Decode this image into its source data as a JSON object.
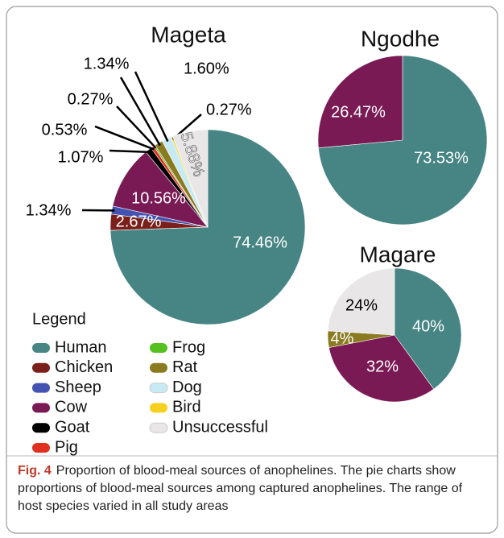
{
  "chart_data": [
    {
      "type": "pie",
      "title": "Mageta",
      "values": [
        74.46,
        2.67,
        1.34,
        10.56,
        1.07,
        0.53,
        0.27,
        1.34,
        1.6,
        0.27,
        5.88
      ],
      "value_labels": [
        "74.46%",
        "2.67%",
        "1.34%",
        "10.56%",
        "1.07%",
        "0.53%",
        "0.27%",
        "1.34%",
        "1.60%",
        "0.27%",
        "5.88%"
      ],
      "colors": [
        "#468583",
        "#7a1f1a",
        "#4453b0",
        "#7a1a55",
        "#000000",
        "#e03020",
        "#55c020",
        "#8a7a20",
        "#c8eaf4",
        "#f5d020",
        "#e8e6e6"
      ]
    },
    {
      "type": "pie",
      "title": "Ngodhe",
      "values": [
        73.53,
        26.47
      ],
      "value_labels": [
        "73.53%",
        "26.47%"
      ],
      "colors": [
        "#468583",
        "#7a1a55"
      ]
    },
    {
      "type": "pie",
      "title": "Magare",
      "values": [
        40,
        32,
        4,
        24
      ],
      "value_labels": [
        "40%",
        "32%",
        "4%",
        "24%"
      ],
      "colors": [
        "#468583",
        "#7a1a55",
        "#8a7a20",
        "#e8e6e6"
      ]
    }
  ],
  "legend": {
    "title": "Legend",
    "items": [
      {
        "name": "Human",
        "color": "#468583"
      },
      {
        "name": "Chicken",
        "color": "#7a1f1a"
      },
      {
        "name": "Sheep",
        "color": "#4453b0"
      },
      {
        "name": "Cow",
        "color": "#7a1a55"
      },
      {
        "name": "Goat",
        "color": "#000000"
      },
      {
        "name": "Pig",
        "color": "#e03020"
      },
      {
        "name": "Frog",
        "color": "#55c020"
      },
      {
        "name": "Rat",
        "color": "#8a7a20"
      },
      {
        "name": "Dog",
        "color": "#c8eaf4"
      },
      {
        "name": "Bird",
        "color": "#f5d020"
      },
      {
        "name": "Unsuccessful",
        "color": "#e8e6e6"
      }
    ]
  },
  "caption": {
    "label": "Fig. 4",
    "text": "Proportion of blood-meal sources of anophelines. The pie charts show proportions of blood-meal sources among captured anophelines. The range of host species varied in all study areas"
  }
}
